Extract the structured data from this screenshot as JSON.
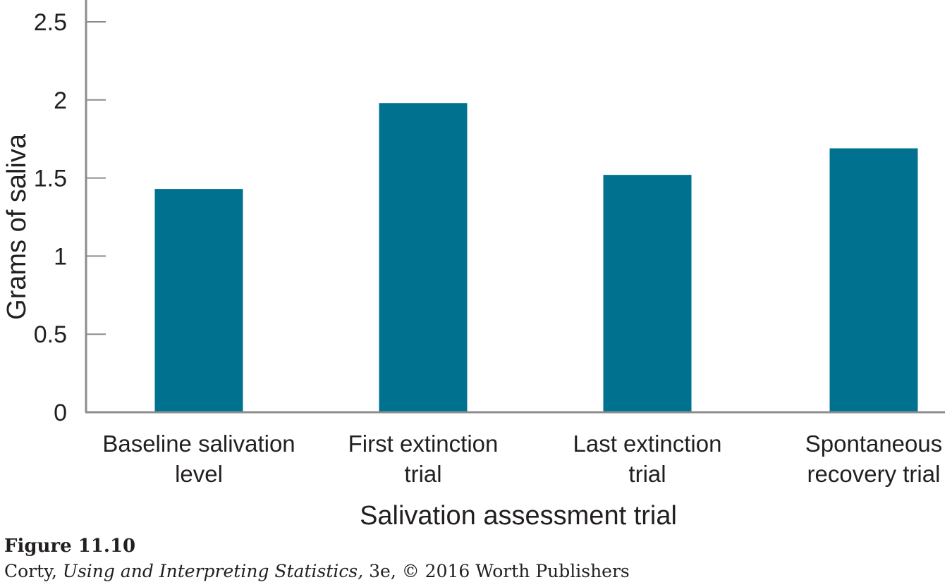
{
  "chart_data": {
    "type": "bar",
    "categories": [
      [
        "Baseline salivation",
        "level"
      ],
      [
        "First extinction",
        "trial"
      ],
      [
        "Last extinction",
        "trial"
      ],
      [
        "Spontaneous",
        "recovery trial"
      ]
    ],
    "values": [
      1.43,
      1.98,
      1.52,
      1.69
    ],
    "xlabel": "Salivation assessment trial",
    "ylabel": "Grams of saliva",
    "ylim": [
      0,
      2.5
    ],
    "yticks": [
      0,
      0.5,
      1,
      1.5,
      2,
      2.5
    ],
    "ytick_labels": [
      "0",
      "0.5",
      "1",
      "1.5",
      "2",
      "2.5"
    ],
    "bar_color": "#00728f",
    "axis_color": "#8c8c8c",
    "grid": false
  },
  "caption": {
    "figure_label": "Figure 11.10",
    "credit_prefix": "Corty, ",
    "credit_title": "Using and Interpreting Statistics,",
    "credit_suffix": " 3e, © 2016 Worth Publishers"
  }
}
